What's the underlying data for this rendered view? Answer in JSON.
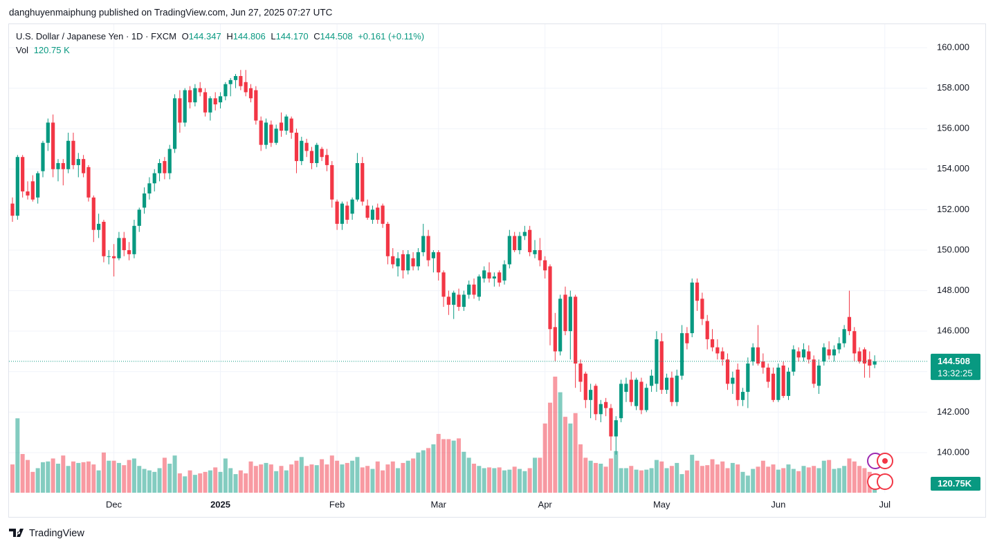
{
  "chart_data": {
    "type": "candlestick",
    "header": "danghuyenmaiphung published on TradingView.com, Jun 27, 2025 07:27 UTC",
    "footer": "TradingView",
    "legend": {
      "symbol": "U.S. Dollar / Japanese Yen · 1D · FXCM",
      "open_key": "O",
      "open": 144.347,
      "high_key": "H",
      "high": 144.806,
      "low_key": "L",
      "low": {
        "value": 144.17,
        "label": "144.170"
      },
      "close_key": "C",
      "close": 144.508,
      "change": "+0.161 (+0.11%)",
      "vol_key": "Vol",
      "vol": "120.75 K"
    },
    "countdown": "13:32:25",
    "up_color": "#089981",
    "down_color": "#f23645",
    "grid": true,
    "ylim": [
      138.02,
      161.16
    ],
    "yticks": [
      {
        "value": 140,
        "label": "140.000"
      },
      {
        "value": 142,
        "label": "142.000"
      },
      {
        "value": 144,
        "label": "144.000"
      },
      {
        "value": 146,
        "label": "146.000"
      },
      {
        "value": 148,
        "label": "148.000"
      },
      {
        "value": 150,
        "label": "150.000"
      },
      {
        "value": 152,
        "label": "152.000"
      },
      {
        "value": 154,
        "label": "154.000"
      },
      {
        "value": 156,
        "label": "156.000"
      },
      {
        "value": 158,
        "label": "158.000"
      },
      {
        "value": 160,
        "label": "160.000"
      }
    ],
    "categories": [
      null,
      null,
      null,
      null,
      null,
      null,
      null,
      null,
      null,
      null,
      null,
      null,
      null,
      null,
      null,
      null,
      null,
      null,
      null,
      null,
      "Dec",
      null,
      null,
      null,
      null,
      null,
      null,
      null,
      null,
      null,
      null,
      null,
      null,
      null,
      null,
      null,
      null,
      null,
      null,
      null,
      null,
      "2025",
      null,
      null,
      null,
      null,
      null,
      null,
      null,
      null,
      null,
      null,
      null,
      null,
      null,
      null,
      null,
      null,
      null,
      null,
      null,
      null,
      null,
      null,
      "Feb",
      null,
      null,
      null,
      null,
      null,
      null,
      null,
      null,
      null,
      null,
      null,
      null,
      null,
      null,
      null,
      null,
      null,
      null,
      null,
      "Mar",
      null,
      null,
      null,
      null,
      null,
      null,
      null,
      null,
      null,
      null,
      null,
      null,
      null,
      null,
      null,
      null,
      null,
      null,
      null,
      null,
      "Apr",
      null,
      null,
      null,
      null,
      null,
      null,
      null,
      null,
      null,
      null,
      null,
      null,
      null,
      null,
      null,
      null,
      null,
      null,
      null,
      null,
      null,
      null,
      "May",
      null,
      null,
      null,
      null,
      null,
      null,
      null,
      null,
      null,
      null,
      null,
      null,
      null,
      null,
      null,
      null,
      null,
      null,
      null,
      null,
      null,
      null,
      "Jun",
      null,
      null,
      null,
      null,
      null,
      null,
      null,
      null,
      null,
      null,
      null,
      null,
      null,
      null,
      null,
      null,
      null,
      null,
      null,
      null,
      "Jul"
    ],
    "candles": [
      [
        152.3,
        152.6,
        151.4,
        151.7
      ],
      [
        151.7,
        154.7,
        151.5,
        154.6
      ],
      [
        154.6,
        154.7,
        152.6,
        152.9
      ],
      [
        152.9,
        153.4,
        152.5,
        152.7
      ],
      [
        153.4,
        153.7,
        152.4,
        152.5
      ],
      [
        152.6,
        153.9,
        152.3,
        153.8
      ],
      [
        153.9,
        155.4,
        153.6,
        155.3
      ],
      [
        155.3,
        156.5,
        154.9,
        156.3
      ],
      [
        156.3,
        156.7,
        153.6,
        154.0
      ],
      [
        154.0,
        154.5,
        153.4,
        154.3
      ],
      [
        154.3,
        154.5,
        153.2,
        154.0
      ],
      [
        154.0,
        155.8,
        153.8,
        155.4
      ],
      [
        155.4,
        155.8,
        154.0,
        154.2
      ],
      [
        154.2,
        154.8,
        153.6,
        154.5
      ],
      [
        154.5,
        154.7,
        153.6,
        153.8
      ],
      [
        154.1,
        154.2,
        152.4,
        152.6
      ],
      [
        152.6,
        152.7,
        150.4,
        151.0
      ],
      [
        151.0,
        151.8,
        150.6,
        151.3
      ],
      [
        151.4,
        151.5,
        149.4,
        149.7
      ],
      [
        149.7,
        150.0,
        149.3,
        149.7
      ],
      [
        149.7,
        150.3,
        148.7,
        149.6
      ],
      [
        149.6,
        150.9,
        149.5,
        150.6
      ],
      [
        150.6,
        150.9,
        149.7,
        150.0
      ],
      [
        150.0,
        150.4,
        149.5,
        149.8
      ],
      [
        149.8,
        151.5,
        149.6,
        151.2
      ],
      [
        151.2,
        152.1,
        150.9,
        152.0
      ],
      [
        152.1,
        153.1,
        151.8,
        152.8
      ],
      [
        152.8,
        153.6,
        152.5,
        153.3
      ],
      [
        153.3,
        154.0,
        152.9,
        153.8
      ],
      [
        153.8,
        154.5,
        153.4,
        154.3
      ],
      [
        154.4,
        154.6,
        153.5,
        153.8
      ],
      [
        153.8,
        155.2,
        153.5,
        155.0
      ],
      [
        155.0,
        157.7,
        154.8,
        157.5
      ],
      [
        157.5,
        157.9,
        155.8,
        156.3
      ],
      [
        156.3,
        158.0,
        156.1,
        157.9
      ],
      [
        157.9,
        158.1,
        157.0,
        157.3
      ],
      [
        157.3,
        158.2,
        157.1,
        158.0
      ],
      [
        158.0,
        158.3,
        157.6,
        157.8
      ],
      [
        157.8,
        158.0,
        156.6,
        156.8
      ],
      [
        156.8,
        157.6,
        156.4,
        157.5
      ],
      [
        157.5,
        157.8,
        156.9,
        157.2
      ],
      [
        157.3,
        157.8,
        157.0,
        157.6
      ],
      [
        157.6,
        158.3,
        157.4,
        158.2
      ],
      [
        158.2,
        158.5,
        157.6,
        158.4
      ],
      [
        158.4,
        158.7,
        158.0,
        158.6
      ],
      [
        158.6,
        158.9,
        157.9,
        158.1
      ],
      [
        158.3,
        158.9,
        157.6,
        157.8
      ],
      [
        158.0,
        158.2,
        157.3,
        157.5
      ],
      [
        157.9,
        158.1,
        156.2,
        156.4
      ],
      [
        156.4,
        156.6,
        154.9,
        155.2
      ],
      [
        155.2,
        156.5,
        155.0,
        156.3
      ],
      [
        156.2,
        156.4,
        155.1,
        155.3
      ],
      [
        155.3,
        156.2,
        155.2,
        156.0
      ],
      [
        156.3,
        156.8,
        155.6,
        155.9
      ],
      [
        155.9,
        156.7,
        155.7,
        156.6
      ],
      [
        156.5,
        156.6,
        155.5,
        155.8
      ],
      [
        155.8,
        156.0,
        153.8,
        154.4
      ],
      [
        154.4,
        155.6,
        154.2,
        155.4
      ],
      [
        155.3,
        155.5,
        154.6,
        154.9
      ],
      [
        154.9,
        155.1,
        154.0,
        154.3
      ],
      [
        154.3,
        155.3,
        154.1,
        155.2
      ],
      [
        155.0,
        155.1,
        154.4,
        154.6
      ],
      [
        154.7,
        155.0,
        153.9,
        154.2
      ],
      [
        154.2,
        154.4,
        152.1,
        152.5
      ],
      [
        152.4,
        152.5,
        151.0,
        151.3
      ],
      [
        151.3,
        152.4,
        151.0,
        152.3
      ],
      [
        152.2,
        152.4,
        151.3,
        151.5
      ],
      [
        151.8,
        152.6,
        151.5,
        152.5
      ],
      [
        152.5,
        154.8,
        152.4,
        154.3
      ],
      [
        154.3,
        154.6,
        152.2,
        152.4
      ],
      [
        152.2,
        152.5,
        151.5,
        151.6
      ],
      [
        151.5,
        152.2,
        151.3,
        152.0
      ],
      [
        152.1,
        152.3,
        151.3,
        151.5
      ],
      [
        152.2,
        152.3,
        151.1,
        151.3
      ],
      [
        151.3,
        151.4,
        149.3,
        149.7
      ],
      [
        149.7,
        150.1,
        149.1,
        149.3
      ],
      [
        149.2,
        149.9,
        148.7,
        149.6
      ],
      [
        149.8,
        150.0,
        148.6,
        149.0
      ],
      [
        149.0,
        150.0,
        148.8,
        149.8
      ],
      [
        149.6,
        149.9,
        149.0,
        149.2
      ],
      [
        149.2,
        150.1,
        149.0,
        149.9
      ],
      [
        149.9,
        151.3,
        149.7,
        150.7
      ],
      [
        150.7,
        151.0,
        149.2,
        149.5
      ],
      [
        149.6,
        150.0,
        148.9,
        149.9
      ],
      [
        149.9,
        150.0,
        148.5,
        148.9
      ],
      [
        148.9,
        149.0,
        147.2,
        147.7
      ],
      [
        147.7,
        148.0,
        146.8,
        147.3
      ],
      [
        147.3,
        148.0,
        146.6,
        147.9
      ],
      [
        147.8,
        148.1,
        147.0,
        147.2
      ],
      [
        147.2,
        148.0,
        147.0,
        147.8
      ],
      [
        147.8,
        148.5,
        147.6,
        148.3
      ],
      [
        148.3,
        148.6,
        147.6,
        147.8
      ],
      [
        147.7,
        148.8,
        147.5,
        148.7
      ],
      [
        148.6,
        149.2,
        148.4,
        149.0
      ],
      [
        148.9,
        149.4,
        148.4,
        148.6
      ],
      [
        148.6,
        148.9,
        148.2,
        148.7
      ],
      [
        148.9,
        149.0,
        148.2,
        148.4
      ],
      [
        148.5,
        149.5,
        148.3,
        149.3
      ],
      [
        149.3,
        151.0,
        149.1,
        150.7
      ],
      [
        150.7,
        150.9,
        149.9,
        150.0
      ],
      [
        150.0,
        150.9,
        149.8,
        150.7
      ],
      [
        150.7,
        151.2,
        150.5,
        150.9
      ],
      [
        151.0,
        151.2,
        149.7,
        149.9
      ],
      [
        149.8,
        150.5,
        149.6,
        150.0
      ],
      [
        150.0,
        150.6,
        149.2,
        149.5
      ],
      [
        149.5,
        149.7,
        148.6,
        149.0
      ],
      [
        149.2,
        149.3,
        145.3,
        146.1
      ],
      [
        146.2,
        146.9,
        144.5,
        145.0
      ],
      [
        145.0,
        147.8,
        144.8,
        147.6
      ],
      [
        147.8,
        148.2,
        145.8,
        146.0
      ],
      [
        146.0,
        148.0,
        144.6,
        147.7
      ],
      [
        147.7,
        147.8,
        143.2,
        144.4
      ],
      [
        144.4,
        144.6,
        143.0,
        143.5
      ],
      [
        143.9,
        144.0,
        142.2,
        142.6
      ],
      [
        142.6,
        143.4,
        141.7,
        143.1
      ],
      [
        143.3,
        143.4,
        141.6,
        141.9
      ],
      [
        141.9,
        142.6,
        141.5,
        142.4
      ],
      [
        142.5,
        142.7,
        141.8,
        142.2
      ],
      [
        142.2,
        142.4,
        140.1,
        140.8
      ],
      [
        140.8,
        141.8,
        139.9,
        141.6
      ],
      [
        141.7,
        143.6,
        141.5,
        143.4
      ],
      [
        143.0,
        143.7,
        142.5,
        143.4
      ],
      [
        143.6,
        144.0,
        142.3,
        142.5
      ],
      [
        142.3,
        143.7,
        142.1,
        143.6
      ],
      [
        143.5,
        143.7,
        141.9,
        142.1
      ],
      [
        142.1,
        143.4,
        142.0,
        143.2
      ],
      [
        143.3,
        144.1,
        143.0,
        143.8
      ],
      [
        143.4,
        146.0,
        143.0,
        145.6
      ],
      [
        145.5,
        145.9,
        142.9,
        143.1
      ],
      [
        143.1,
        143.9,
        142.9,
        143.7
      ],
      [
        143.7,
        144.0,
        142.3,
        142.5
      ],
      [
        142.5,
        144.1,
        142.3,
        143.8
      ],
      [
        143.8,
        146.3,
        143.6,
        145.9
      ],
      [
        145.9,
        146.2,
        145.1,
        145.4
      ],
      [
        145.9,
        148.6,
        145.7,
        148.4
      ],
      [
        148.4,
        148.6,
        147.0,
        147.5
      ],
      [
        147.6,
        147.9,
        146.3,
        146.6
      ],
      [
        146.5,
        146.8,
        145.1,
        145.6
      ],
      [
        145.6,
        146.1,
        145.0,
        145.2
      ],
      [
        145.2,
        145.6,
        144.6,
        144.9
      ],
      [
        145.0,
        145.2,
        144.3,
        144.6
      ],
      [
        144.6,
        144.9,
        143.1,
        143.4
      ],
      [
        143.4,
        144.0,
        142.9,
        143.7
      ],
      [
        144.1,
        144.4,
        142.3,
        142.6
      ],
      [
        142.6,
        143.2,
        142.3,
        143.0
      ],
      [
        143.0,
        144.7,
        142.2,
        144.4
      ],
      [
        144.5,
        145.4,
        144.3,
        145.2
      ],
      [
        145.2,
        146.3,
        144.3,
        144.4
      ],
      [
        144.5,
        144.9,
        143.9,
        144.2
      ],
      [
        144.2,
        144.4,
        143.2,
        143.5
      ],
      [
        143.9,
        144.2,
        142.5,
        142.6
      ],
      [
        142.6,
        144.4,
        142.5,
        144.2
      ],
      [
        144.3,
        144.5,
        142.7,
        142.8
      ],
      [
        142.8,
        144.2,
        142.6,
        144.0
      ],
      [
        144.0,
        145.3,
        143.8,
        145.1
      ],
      [
        145.0,
        145.2,
        144.5,
        144.7
      ],
      [
        144.7,
        145.4,
        144.5,
        145.1
      ],
      [
        145.0,
        145.3,
        144.4,
        144.6
      ],
      [
        144.6,
        144.8,
        143.2,
        143.4
      ],
      [
        143.3,
        144.6,
        142.9,
        144.3
      ],
      [
        144.5,
        145.4,
        144.3,
        145.2
      ],
      [
        145.1,
        145.5,
        144.6,
        144.8
      ],
      [
        144.8,
        145.3,
        144.5,
        145.1
      ],
      [
        145.1,
        145.7,
        144.9,
        145.4
      ],
      [
        145.4,
        146.3,
        145.2,
        146.1
      ],
      [
        146.7,
        148.0,
        145.8,
        146.0
      ],
      [
        146.0,
        146.2,
        144.5,
        144.9
      ],
      [
        145.0,
        145.2,
        144.4,
        144.5
      ],
      [
        145.1,
        145.2,
        143.7,
        144.4
      ],
      [
        144.6,
        145.0,
        143.7,
        144.3
      ],
      [
        144.347,
        144.806,
        144.17,
        144.508
      ],
      null,
      null
    ],
    "volume": {
      "values": [
        380,
        1000,
        520,
        440,
        280,
        330,
        410,
        420,
        460,
        390,
        500,
        360,
        420,
        400,
        410,
        420,
        380,
        300,
        540,
        430,
        430,
        400,
        370,
        440,
        460,
        360,
        320,
        300,
        280,
        330,
        470,
        390,
        500,
        260,
        220,
        300,
        240,
        260,
        280,
        300,
        340,
        280,
        460,
        330,
        250,
        300,
        260,
        420,
        360,
        380,
        400,
        380,
        290,
        360,
        300,
        380,
        430,
        480,
        360,
        380,
        370,
        450,
        380,
        500,
        430,
        380,
        400,
        430,
        480,
        340,
        360,
        320,
        420,
        300,
        380,
        420,
        330,
        400,
        430,
        460,
        540,
        570,
        600,
        650,
        790,
        720,
        720,
        700,
        730,
        550,
        470,
        390,
        360,
        330,
        340,
        330,
        340,
        300,
        310,
        350,
        320,
        290,
        330,
        470,
        470,
        930,
        1210,
        1560,
        1350,
        1020,
        930,
        1070,
        650,
        470,
        430,
        400,
        390,
        350,
        460,
        560,
        330,
        330,
        360,
        310,
        300,
        310,
        330,
        440,
        420,
        330,
        360,
        400,
        250,
        300,
        510,
        430,
        360,
        370,
        450,
        380,
        420,
        330,
        400,
        380,
        280,
        230,
        320,
        350,
        430,
        350,
        380,
        310,
        330,
        380,
        320,
        290,
        360,
        340,
        360,
        330,
        430,
        440,
        320,
        330,
        360,
        460,
        420,
        360,
        330,
        280,
        120.75,
        null,
        null
      ],
      "last_label": "120.75K"
    }
  }
}
